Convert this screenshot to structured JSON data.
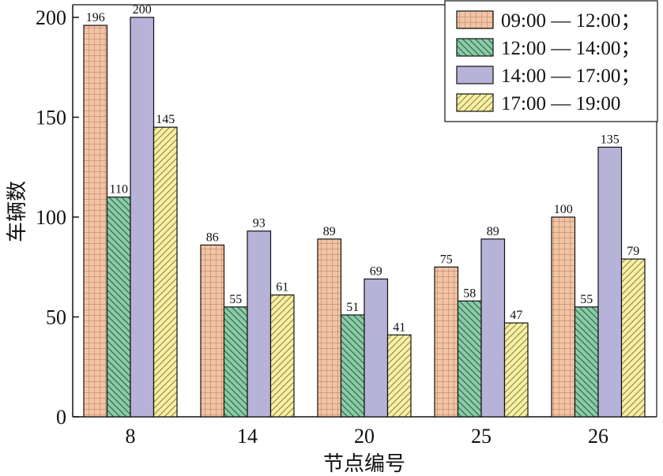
{
  "chart_data": {
    "type": "bar",
    "title": "",
    "xlabel": "节点编号",
    "ylabel": "车辆数",
    "ylim": [
      0,
      200
    ],
    "yticks": [
      0,
      50,
      100,
      150,
      200
    ],
    "categories": [
      "8",
      "14",
      "20",
      "25",
      "26"
    ],
    "legend_position": "top-right",
    "grid": false,
    "series": [
      {
        "name": "09:00 — 12:00；",
        "values": [
          196,
          86,
          89,
          75,
          100
        ],
        "color": "#f2c4a6",
        "pattern": "grid"
      },
      {
        "name": "12:00 — 14:00；",
        "values": [
          110,
          55,
          51,
          58,
          55
        ],
        "color": "#8ccaa8",
        "pattern": "diagonal-back"
      },
      {
        "name": "14:00 — 17:00；",
        "values": [
          200,
          93,
          69,
          89,
          135
        ],
        "color": "#b6b2d8",
        "pattern": "solid"
      },
      {
        "name": "17:00 — 19:00",
        "values": [
          145,
          61,
          41,
          47,
          79
        ],
        "color": "#f7f0a8",
        "pattern": "diagonal-forward"
      }
    ]
  }
}
